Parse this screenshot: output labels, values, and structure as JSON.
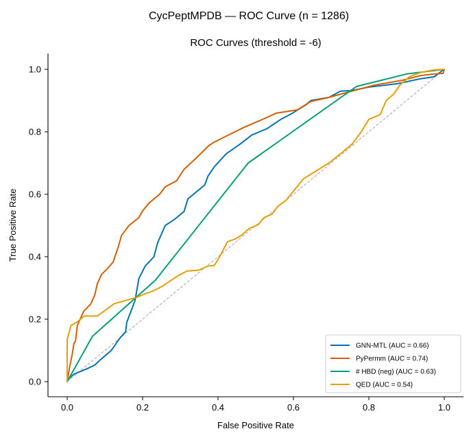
{
  "chart_data": {
    "type": "line",
    "suptitle": "CycPeptMPDB — ROC Curve  (n = 1286)",
    "title": "ROC Curves  (threshold = -6)",
    "xlabel": "False Positive Rate",
    "ylabel": "True Positive Rate",
    "xlim": [
      -0.05,
      1.05
    ],
    "ylim": [
      -0.05,
      1.05
    ],
    "xticks": [
      0.0,
      0.2,
      0.4,
      0.6,
      0.8,
      1.0
    ],
    "xtick_labels": [
      "0.0",
      "0.2",
      "0.4",
      "0.6",
      "0.8",
      "1.0"
    ],
    "yticks": [
      0.0,
      0.2,
      0.4,
      0.6,
      0.8,
      1.0
    ],
    "ytick_labels": [
      "0.0",
      "0.2",
      "0.4",
      "0.6",
      "0.8",
      "1.0"
    ],
    "grid": false,
    "legend_position": "bottom-right",
    "diagonal": {
      "name": "chance",
      "color": "#999999",
      "style": "dashed",
      "x": [
        0,
        1
      ],
      "y": [
        0,
        1
      ]
    },
    "series": [
      {
        "name": "GNN-MTL (AUC = 0.66)",
        "label": "GNN-MTL",
        "auc": 0.66,
        "color": "#0072B2",
        "x": [
          0,
          0.0,
          0.018,
          0.05,
          0.073,
          0.09,
          0.117,
          0.14,
          0.155,
          0.158,
          0.18,
          0.19,
          0.207,
          0.23,
          0.24,
          0.26,
          0.285,
          0.31,
          0.32,
          0.345,
          0.365,
          0.373,
          0.39,
          0.422,
          0.458,
          0.49,
          0.53,
          0.567,
          0.598,
          0.634,
          0.646,
          0.694,
          0.725,
          0.755,
          0.8,
          0.876,
          0.937,
          0.973,
          0.997,
          1.0
        ],
        "y": [
          0,
          0.005,
          0.024,
          0.04,
          0.053,
          0.072,
          0.1,
          0.14,
          0.16,
          0.19,
          0.26,
          0.33,
          0.37,
          0.4,
          0.445,
          0.5,
          0.52,
          0.545,
          0.585,
          0.61,
          0.63,
          0.657,
          0.688,
          0.73,
          0.76,
          0.79,
          0.81,
          0.84,
          0.86,
          0.887,
          0.9,
          0.91,
          0.93,
          0.932,
          0.943,
          0.954,
          0.97,
          0.976,
          0.998,
          1.0
        ]
      },
      {
        "name": "PyPermm (AUC = 0.74)",
        "label": "PyPermm",
        "auc": 0.74,
        "color": "#D55E00",
        "x": [
          0,
          0.007,
          0.013,
          0.018,
          0.022,
          0.027,
          0.044,
          0.062,
          0.073,
          0.08,
          0.091,
          0.109,
          0.122,
          0.135,
          0.144,
          0.164,
          0.19,
          0.2,
          0.218,
          0.245,
          0.26,
          0.29,
          0.31,
          0.337,
          0.376,
          0.39,
          0.428,
          0.47,
          0.513,
          0.555,
          0.61,
          0.646,
          0.694,
          0.755,
          0.816,
          0.889,
          0.937,
          0.973,
          0.997,
          1.0
        ],
        "y": [
          0,
          0.05,
          0.086,
          0.123,
          0.13,
          0.18,
          0.226,
          0.248,
          0.277,
          0.314,
          0.343,
          0.365,
          0.383,
          0.43,
          0.468,
          0.5,
          0.525,
          0.547,
          0.573,
          0.6,
          0.624,
          0.643,
          0.68,
          0.71,
          0.756,
          0.767,
          0.79,
          0.815,
          0.837,
          0.86,
          0.87,
          0.897,
          0.91,
          0.93,
          0.95,
          0.965,
          0.98,
          0.985,
          0.987,
          1.0
        ]
      },
      {
        "name": "# HBD (neg) (AUC = 0.63)",
        "label": "# HBD (neg)",
        "auc": 0.63,
        "color": "#009E73",
        "x": [
          0,
          0.067,
          0.234,
          0.48,
          0.767,
          0.9,
          1.0
        ],
        "y": [
          0,
          0.145,
          0.325,
          0.7,
          0.945,
          0.985,
          1.0
        ]
      },
      {
        "name": "QED (AUC = 0.54)",
        "label": "QED",
        "auc": 0.54,
        "color": "#E69F00",
        "x": [
          0,
          0.0,
          0.01,
          0.025,
          0.045,
          0.08,
          0.125,
          0.155,
          0.185,
          0.204,
          0.227,
          0.253,
          0.27,
          0.295,
          0.318,
          0.349,
          0.373,
          0.39,
          0.398,
          0.41,
          0.425,
          0.446,
          0.464,
          0.482,
          0.507,
          0.522,
          0.543,
          0.56,
          0.58,
          0.627,
          0.694,
          0.725,
          0.755,
          0.78,
          0.8,
          0.83,
          0.846,
          0.865,
          0.883,
          0.907,
          0.937,
          0.973,
          1.0
        ],
        "y": [
          0,
          0.135,
          0.18,
          0.19,
          0.21,
          0.21,
          0.25,
          0.26,
          0.27,
          0.28,
          0.29,
          0.306,
          0.32,
          0.34,
          0.354,
          0.357,
          0.37,
          0.372,
          0.387,
          0.413,
          0.448,
          0.457,
          0.47,
          0.49,
          0.503,
          0.525,
          0.536,
          0.563,
          0.58,
          0.65,
          0.7,
          0.73,
          0.76,
          0.8,
          0.84,
          0.855,
          0.9,
          0.92,
          0.95,
          0.976,
          0.99,
          0.998,
          1.0
        ]
      }
    ]
  }
}
